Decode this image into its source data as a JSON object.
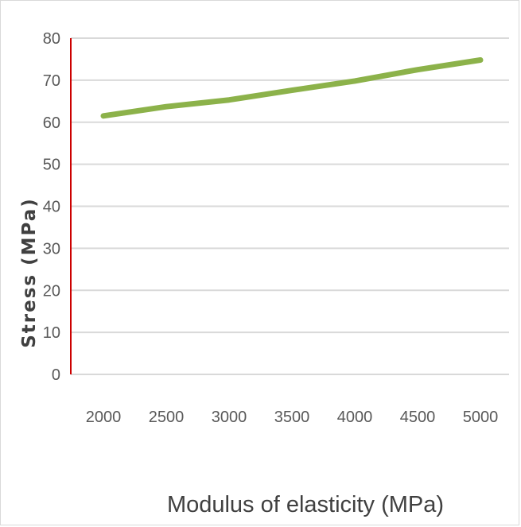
{
  "chart_data": {
    "type": "line",
    "title": "",
    "xlabel": "Modulus of elasticity (MPa)",
    "ylabel": "Stress (MPa)",
    "categories": [
      "2000",
      "2500",
      "3000",
      "3500",
      "4000",
      "4500",
      "5000"
    ],
    "series": [
      {
        "values": [
          61.5,
          63.7,
          65.3,
          67.6,
          69.8,
          72.5,
          74.8
        ]
      }
    ],
    "ylim": [
      0,
      80
    ],
    "yticks": [
      "0",
      "10",
      "20",
      "30",
      "40",
      "50",
      "60",
      "70",
      "80"
    ],
    "grid": true,
    "line_color": "#8cb24a",
    "y_axis_color": "#cc0000",
    "grid_color": "#d9d9d9"
  }
}
